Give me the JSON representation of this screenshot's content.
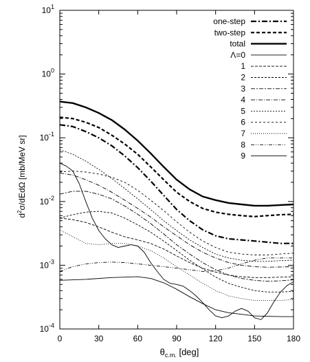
{
  "chart_data": {
    "type": "line",
    "title": "",
    "xlabel": {
      "main": "θ",
      "sub": "c.m.",
      "rest": " [deg]"
    },
    "ylabel": {
      "pre": "d",
      "sup": "2",
      "rest": "σ/dEdΩ [mb/MeV sr]"
    },
    "x_scale": "linear",
    "y_scale": "log",
    "xlim": [
      0,
      180
    ],
    "ylim_exp": [
      -4,
      1
    ],
    "x_ticks": [
      0,
      30,
      60,
      90,
      120,
      150,
      180
    ],
    "x_tick_labels": [
      "0",
      "30",
      "60",
      "90",
      "120",
      "150",
      "180"
    ],
    "y_tick_labels": [
      {
        "base": "10",
        "exp": "-4"
      },
      {
        "base": "10",
        "exp": "-3"
      },
      {
        "base": "10",
        "exp": "-2"
      },
      {
        "base": "10",
        "exp": "-1"
      },
      {
        "base": "10",
        "exp": "0"
      },
      {
        "base": "10",
        "exp": "1"
      }
    ],
    "grid": false,
    "legend_position": "top-right",
    "series": [
      {
        "name": "one-step",
        "dash": "8 3 2 3",
        "width": 2.2,
        "points": [
          [
            0,
            0.16
          ],
          [
            10,
            0.15
          ],
          [
            20,
            0.125
          ],
          [
            30,
            0.1
          ],
          [
            40,
            0.075
          ],
          [
            50,
            0.052
          ],
          [
            60,
            0.034
          ],
          [
            70,
            0.021
          ],
          [
            80,
            0.0125
          ],
          [
            90,
            0.0075
          ],
          [
            100,
            0.005
          ],
          [
            110,
            0.0036
          ],
          [
            120,
            0.0029
          ],
          [
            130,
            0.0026
          ],
          [
            140,
            0.0025
          ],
          [
            150,
            0.0024
          ],
          [
            160,
            0.0023
          ],
          [
            170,
            0.0022
          ],
          [
            180,
            0.0022
          ]
        ]
      },
      {
        "name": "two-step",
        "dash": "5 3",
        "width": 2.2,
        "points": [
          [
            0,
            0.21
          ],
          [
            10,
            0.2
          ],
          [
            20,
            0.175
          ],
          [
            30,
            0.145
          ],
          [
            40,
            0.11
          ],
          [
            50,
            0.08
          ],
          [
            60,
            0.055
          ],
          [
            70,
            0.035
          ],
          [
            80,
            0.022
          ],
          [
            90,
            0.014
          ],
          [
            100,
            0.01
          ],
          [
            110,
            0.0078
          ],
          [
            120,
            0.0068
          ],
          [
            130,
            0.0063
          ],
          [
            140,
            0.006
          ],
          [
            150,
            0.0058
          ],
          [
            160,
            0.006
          ],
          [
            170,
            0.0062
          ],
          [
            180,
            0.0063
          ]
        ]
      },
      {
        "name": "total",
        "dash": "",
        "width": 2.4,
        "points": [
          [
            0,
            0.37
          ],
          [
            10,
            0.35
          ],
          [
            20,
            0.3
          ],
          [
            30,
            0.245
          ],
          [
            40,
            0.19
          ],
          [
            50,
            0.135
          ],
          [
            60,
            0.09
          ],
          [
            70,
            0.057
          ],
          [
            80,
            0.035
          ],
          [
            90,
            0.022
          ],
          [
            100,
            0.0155
          ],
          [
            110,
            0.012
          ],
          [
            120,
            0.0105
          ],
          [
            130,
            0.0095
          ],
          [
            140,
            0.009
          ],
          [
            150,
            0.0086
          ],
          [
            160,
            0.0086
          ],
          [
            170,
            0.0088
          ],
          [
            180,
            0.009
          ]
        ]
      },
      {
        "name": "Λ=0",
        "dash": "",
        "width": 0.9,
        "points": [
          [
            0,
            0.00058
          ],
          [
            20,
            0.0006
          ],
          [
            40,
            0.00064
          ],
          [
            60,
            0.00066
          ],
          [
            70,
            0.00062
          ],
          [
            80,
            0.00053
          ],
          [
            90,
            0.00042
          ],
          [
            100,
            0.00032
          ],
          [
            110,
            0.00025
          ],
          [
            120,
            0.0002
          ],
          [
            130,
            0.00018
          ],
          [
            140,
            0.00017
          ],
          [
            150,
            0.00016
          ],
          [
            160,
            0.000158
          ],
          [
            170,
            0.000156
          ],
          [
            180,
            0.000156
          ]
        ]
      },
      {
        "name": "1",
        "dash": "4 2",
        "width": 0.9,
        "points": [
          [
            0,
            0.0055
          ],
          [
            10,
            0.0052
          ],
          [
            20,
            0.0047
          ],
          [
            30,
            0.004
          ],
          [
            40,
            0.0033
          ],
          [
            50,
            0.0028
          ],
          [
            60,
            0.0025
          ],
          [
            70,
            0.0022
          ],
          [
            80,
            0.0018
          ],
          [
            90,
            0.0014
          ],
          [
            100,
            0.0011
          ],
          [
            110,
            0.0009
          ],
          [
            120,
            0.00078
          ],
          [
            130,
            0.0007
          ],
          [
            140,
            0.00066
          ],
          [
            150,
            0.00064
          ],
          [
            160,
            0.00064
          ],
          [
            170,
            0.00065
          ],
          [
            180,
            0.00066
          ]
        ]
      },
      {
        "name": "2",
        "dash": "3 2",
        "width": 0.9,
        "points": [
          [
            0,
            0.0055
          ],
          [
            10,
            0.0062
          ],
          [
            20,
            0.0068
          ],
          [
            30,
            0.007
          ],
          [
            40,
            0.0066
          ],
          [
            50,
            0.0055
          ],
          [
            60,
            0.0043
          ],
          [
            70,
            0.0033
          ],
          [
            80,
            0.0024
          ],
          [
            90,
            0.0017
          ],
          [
            100,
            0.0012
          ],
          [
            110,
            0.00088
          ],
          [
            120,
            0.00065
          ],
          [
            130,
            0.00052
          ],
          [
            140,
            0.00045
          ],
          [
            150,
            0.0004
          ],
          [
            160,
            0.00038
          ],
          [
            170,
            0.00038
          ],
          [
            180,
            0.00039
          ]
        ]
      },
      {
        "name": "3",
        "dash": "6 2 2 2",
        "width": 0.9,
        "points": [
          [
            0,
            0.013
          ],
          [
            10,
            0.0145
          ],
          [
            20,
            0.0145
          ],
          [
            30,
            0.013
          ],
          [
            40,
            0.011
          ],
          [
            50,
            0.0085
          ],
          [
            60,
            0.0063
          ],
          [
            70,
            0.0045
          ],
          [
            80,
            0.0031
          ],
          [
            90,
            0.0021
          ],
          [
            100,
            0.0015
          ],
          [
            110,
            0.0011
          ],
          [
            120,
            0.00085
          ],
          [
            130,
            0.0007
          ],
          [
            140,
            0.00062
          ],
          [
            150,
            0.00058
          ],
          [
            160,
            0.00056
          ],
          [
            170,
            0.00057
          ],
          [
            180,
            0.00059
          ]
        ]
      },
      {
        "name": "4",
        "dash": "6 2 1 2",
        "width": 0.9,
        "points": [
          [
            0,
            0.028
          ],
          [
            10,
            0.026
          ],
          [
            20,
            0.022
          ],
          [
            30,
            0.018
          ],
          [
            40,
            0.014
          ],
          [
            50,
            0.0105
          ],
          [
            60,
            0.0078
          ],
          [
            70,
            0.0057
          ],
          [
            80,
            0.004
          ],
          [
            90,
            0.0029
          ],
          [
            100,
            0.0021
          ],
          [
            110,
            0.0016
          ],
          [
            120,
            0.0013
          ],
          [
            130,
            0.0011
          ],
          [
            140,
            0.001
          ],
          [
            150,
            0.00095
          ],
          [
            160,
            0.00093
          ],
          [
            170,
            0.00094
          ],
          [
            180,
            0.00095
          ]
        ]
      },
      {
        "name": "5",
        "dash": "2 2",
        "width": 0.9,
        "points": [
          [
            0,
            0.065
          ],
          [
            10,
            0.055
          ],
          [
            20,
            0.043
          ],
          [
            30,
            0.032
          ],
          [
            40,
            0.023
          ],
          [
            50,
            0.016
          ],
          [
            60,
            0.011
          ],
          [
            70,
            0.0075
          ],
          [
            80,
            0.005
          ],
          [
            90,
            0.0035
          ],
          [
            100,
            0.0025
          ],
          [
            110,
            0.0019
          ],
          [
            120,
            0.0015
          ],
          [
            130,
            0.0013
          ],
          [
            140,
            0.0012
          ],
          [
            150,
            0.00115
          ],
          [
            160,
            0.00115
          ],
          [
            170,
            0.00118
          ],
          [
            180,
            0.0012
          ]
        ]
      },
      {
        "name": "6",
        "dash": "3 3",
        "width": 0.9,
        "points": [
          [
            0,
            0.029
          ],
          [
            10,
            0.03
          ],
          [
            20,
            0.029
          ],
          [
            30,
            0.027
          ],
          [
            40,
            0.024
          ],
          [
            50,
            0.02
          ],
          [
            60,
            0.015
          ],
          [
            70,
            0.0105
          ],
          [
            80,
            0.0072
          ],
          [
            90,
            0.0048
          ],
          [
            100,
            0.0033
          ],
          [
            110,
            0.0024
          ],
          [
            120,
            0.0019
          ],
          [
            130,
            0.0016
          ],
          [
            140,
            0.0015
          ],
          [
            150,
            0.00145
          ],
          [
            160,
            0.00145
          ],
          [
            170,
            0.0015
          ],
          [
            180,
            0.00155
          ]
        ]
      },
      {
        "name": "7",
        "dash": "1 2",
        "width": 0.9,
        "points": [
          [
            0,
            0.0036
          ],
          [
            10,
            0.0028
          ],
          [
            20,
            0.0022
          ],
          [
            30,
            0.0021
          ],
          [
            40,
            0.0022
          ],
          [
            50,
            0.0022
          ],
          [
            60,
            0.002
          ],
          [
            70,
            0.0017
          ],
          [
            80,
            0.0013
          ],
          [
            90,
            0.00095
          ],
          [
            100,
            0.0007
          ],
          [
            110,
            0.00052
          ],
          [
            120,
            0.0004
          ],
          [
            130,
            0.00033
          ],
          [
            140,
            0.0003
          ],
          [
            150,
            0.00028
          ],
          [
            160,
            0.00028
          ],
          [
            170,
            0.00028
          ],
          [
            180,
            0.00029
          ]
        ]
      },
      {
        "name": "8",
        "dash": "5 2 1 2 1 2",
        "width": 0.9,
        "points": [
          [
            0,
            0.0008
          ],
          [
            10,
            0.00095
          ],
          [
            20,
            0.00105
          ],
          [
            30,
            0.0011
          ],
          [
            40,
            0.00112
          ],
          [
            50,
            0.0011
          ],
          [
            60,
            0.00105
          ],
          [
            70,
            0.001
          ],
          [
            80,
            0.00095
          ],
          [
            90,
            0.0009
          ],
          [
            100,
            0.00085
          ],
          [
            110,
            0.0008
          ],
          [
            120,
            0.00082
          ],
          [
            130,
            0.0009
          ],
          [
            140,
            0.00105
          ],
          [
            150,
            0.0012
          ],
          [
            160,
            0.0013
          ],
          [
            170,
            0.0013
          ],
          [
            180,
            0.0013
          ]
        ]
      },
      {
        "name": "9",
        "dash": "",
        "width": 0.9,
        "points": [
          [
            0,
            0.04
          ],
          [
            5,
            0.036
          ],
          [
            10,
            0.03
          ],
          [
            15,
            0.019
          ],
          [
            20,
            0.01
          ],
          [
            25,
            0.0055
          ],
          [
            30,
            0.0035
          ],
          [
            35,
            0.0026
          ],
          [
            40,
            0.0021
          ],
          [
            45,
            0.0019
          ],
          [
            50,
            0.002
          ],
          [
            55,
            0.0021
          ],
          [
            60,
            0.002
          ],
          [
            65,
            0.0016
          ],
          [
            70,
            0.0011
          ],
          [
            75,
            0.0008
          ],
          [
            80,
            0.0006
          ],
          [
            85,
            0.00052
          ],
          [
            90,
            0.0005
          ],
          [
            95,
            0.00047
          ],
          [
            100,
            0.0004
          ],
          [
            105,
            0.00033
          ],
          [
            110,
            0.00026
          ],
          [
            115,
            0.0002
          ],
          [
            120,
            0.00016
          ],
          [
            125,
            0.00015
          ],
          [
            130,
            0.00016
          ],
          [
            135,
            0.00019
          ],
          [
            140,
            0.00021
          ],
          [
            145,
            0.00019
          ],
          [
            150,
            0.00015
          ],
          [
            155,
            0.00014
          ],
          [
            160,
            0.00018
          ],
          [
            165,
            0.00027
          ],
          [
            170,
            0.00038
          ],
          [
            175,
            0.00048
          ],
          [
            180,
            0.00055
          ]
        ]
      }
    ]
  }
}
